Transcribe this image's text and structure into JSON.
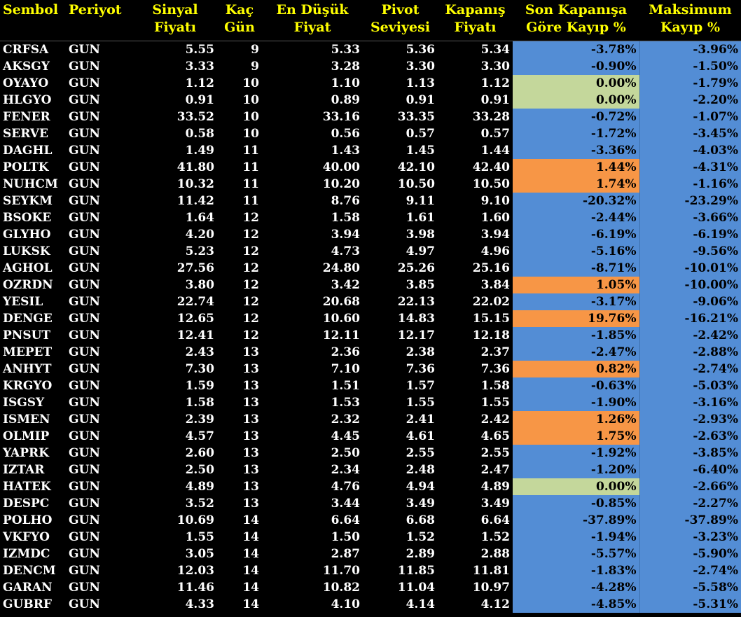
{
  "colors": {
    "header_text": "#ffff00",
    "body_text": "#ffffff",
    "background": "#000000",
    "loss_blue": "#538dd5",
    "zero_green": "#c4d79b",
    "gain_orange": "#f79646"
  },
  "headers": [
    {
      "line1": "Sembol",
      "line2": ""
    },
    {
      "line1": "Periyot",
      "line2": ""
    },
    {
      "line1": "Sinyal",
      "line2": "Fiyatı"
    },
    {
      "line1": "Kaç",
      "line2": "Gün"
    },
    {
      "line1": "En Düşük",
      "line2": "Fiyat"
    },
    {
      "line1": "Pivot",
      "line2": "Seviyesi"
    },
    {
      "line1": "Kapanış",
      "line2": "Fiyatı"
    },
    {
      "line1": "Son Kapanışa",
      "line2": "Göre Kayıp %"
    },
    {
      "line1": "Maksimum",
      "line2": "Kayıp %"
    }
  ],
  "rows": [
    {
      "sembol": "CRFSA",
      "periyot": "GUN",
      "sinyal": "5.55",
      "gun": "9",
      "dusuk": "5.33",
      "pivot": "5.36",
      "kapanis": "5.34",
      "kayip": "-3.78%",
      "maks": "-3.96%",
      "status": "loss"
    },
    {
      "sembol": "AKSGY",
      "periyot": "GUN",
      "sinyal": "3.33",
      "gun": "9",
      "dusuk": "3.28",
      "pivot": "3.30",
      "kapanis": "3.30",
      "kayip": "-0.90%",
      "maks": "-1.50%",
      "status": "loss"
    },
    {
      "sembol": "OYAYO",
      "periyot": "GUN",
      "sinyal": "1.12",
      "gun": "10",
      "dusuk": "1.10",
      "pivot": "1.13",
      "kapanis": "1.12",
      "kayip": "0.00%",
      "maks": "-1.79%",
      "status": "zero"
    },
    {
      "sembol": "HLGYO",
      "periyot": "GUN",
      "sinyal": "0.91",
      "gun": "10",
      "dusuk": "0.89",
      "pivot": "0.91",
      "kapanis": "0.91",
      "kayip": "0.00%",
      "maks": "-2.20%",
      "status": "zero"
    },
    {
      "sembol": "FENER",
      "periyot": "GUN",
      "sinyal": "33.52",
      "gun": "10",
      "dusuk": "33.16",
      "pivot": "33.35",
      "kapanis": "33.28",
      "kayip": "-0.72%",
      "maks": "-1.07%",
      "status": "loss"
    },
    {
      "sembol": "SERVE",
      "periyot": "GUN",
      "sinyal": "0.58",
      "gun": "10",
      "dusuk": "0.56",
      "pivot": "0.57",
      "kapanis": "0.57",
      "kayip": "-1.72%",
      "maks": "-3.45%",
      "status": "loss"
    },
    {
      "sembol": "DAGHL",
      "periyot": "GUN",
      "sinyal": "1.49",
      "gun": "11",
      "dusuk": "1.43",
      "pivot": "1.45",
      "kapanis": "1.44",
      "kayip": "-3.36%",
      "maks": "-4.03%",
      "status": "loss"
    },
    {
      "sembol": "POLTK",
      "periyot": "GUN",
      "sinyal": "41.80",
      "gun": "11",
      "dusuk": "40.00",
      "pivot": "42.10",
      "kapanis": "42.40",
      "kayip": "1.44%",
      "maks": "-4.31%",
      "status": "gain"
    },
    {
      "sembol": "NUHCM",
      "periyot": "GUN",
      "sinyal": "10.32",
      "gun": "11",
      "dusuk": "10.20",
      "pivot": "10.50",
      "kapanis": "10.50",
      "kayip": "1.74%",
      "maks": "-1.16%",
      "status": "gain"
    },
    {
      "sembol": "SEYKM",
      "periyot": "GUN",
      "sinyal": "11.42",
      "gun": "11",
      "dusuk": "8.76",
      "pivot": "9.11",
      "kapanis": "9.10",
      "kayip": "-20.32%",
      "maks": "-23.29%",
      "status": "loss"
    },
    {
      "sembol": "BSOKE",
      "periyot": "GUN",
      "sinyal": "1.64",
      "gun": "12",
      "dusuk": "1.58",
      "pivot": "1.61",
      "kapanis": "1.60",
      "kayip": "-2.44%",
      "maks": "-3.66%",
      "status": "loss"
    },
    {
      "sembol": "GLYHO",
      "periyot": "GUN",
      "sinyal": "4.20",
      "gun": "12",
      "dusuk": "3.94",
      "pivot": "3.98",
      "kapanis": "3.94",
      "kayip": "-6.19%",
      "maks": "-6.19%",
      "status": "loss"
    },
    {
      "sembol": "LUKSK",
      "periyot": "GUN",
      "sinyal": "5.23",
      "gun": "12",
      "dusuk": "4.73",
      "pivot": "4.97",
      "kapanis": "4.96",
      "kayip": "-5.16%",
      "maks": "-9.56%",
      "status": "loss"
    },
    {
      "sembol": "AGHOL",
      "periyot": "GUN",
      "sinyal": "27.56",
      "gun": "12",
      "dusuk": "24.80",
      "pivot": "25.26",
      "kapanis": "25.16",
      "kayip": "-8.71%",
      "maks": "-10.01%",
      "status": "loss"
    },
    {
      "sembol": "OZRDN",
      "periyot": "GUN",
      "sinyal": "3.80",
      "gun": "12",
      "dusuk": "3.42",
      "pivot": "3.85",
      "kapanis": "3.84",
      "kayip": "1.05%",
      "maks": "-10.00%",
      "status": "gain"
    },
    {
      "sembol": "YESIL",
      "periyot": "GUN",
      "sinyal": "22.74",
      "gun": "12",
      "dusuk": "20.68",
      "pivot": "22.13",
      "kapanis": "22.02",
      "kayip": "-3.17%",
      "maks": "-9.06%",
      "status": "loss"
    },
    {
      "sembol": "DENGE",
      "periyot": "GUN",
      "sinyal": "12.65",
      "gun": "12",
      "dusuk": "10.60",
      "pivot": "14.83",
      "kapanis": "15.15",
      "kayip": "19.76%",
      "maks": "-16.21%",
      "status": "gain"
    },
    {
      "sembol": "PNSUT",
      "periyot": "GUN",
      "sinyal": "12.41",
      "gun": "12",
      "dusuk": "12.11",
      "pivot": "12.17",
      "kapanis": "12.18",
      "kayip": "-1.85%",
      "maks": "-2.42%",
      "status": "loss"
    },
    {
      "sembol": "MEPET",
      "periyot": "GUN",
      "sinyal": "2.43",
      "gun": "13",
      "dusuk": "2.36",
      "pivot": "2.38",
      "kapanis": "2.37",
      "kayip": "-2.47%",
      "maks": "-2.88%",
      "status": "loss"
    },
    {
      "sembol": "ANHYT",
      "periyot": "GUN",
      "sinyal": "7.30",
      "gun": "13",
      "dusuk": "7.10",
      "pivot": "7.36",
      "kapanis": "7.36",
      "kayip": "0.82%",
      "maks": "-2.74%",
      "status": "gain"
    },
    {
      "sembol": "KRGYO",
      "periyot": "GUN",
      "sinyal": "1.59",
      "gun": "13",
      "dusuk": "1.51",
      "pivot": "1.57",
      "kapanis": "1.58",
      "kayip": "-0.63%",
      "maks": "-5.03%",
      "status": "loss"
    },
    {
      "sembol": "ISGSY",
      "periyot": "GUN",
      "sinyal": "1.58",
      "gun": "13",
      "dusuk": "1.53",
      "pivot": "1.55",
      "kapanis": "1.55",
      "kayip": "-1.90%",
      "maks": "-3.16%",
      "status": "loss"
    },
    {
      "sembol": "ISMEN",
      "periyot": "GUN",
      "sinyal": "2.39",
      "gun": "13",
      "dusuk": "2.32",
      "pivot": "2.41",
      "kapanis": "2.42",
      "kayip": "1.26%",
      "maks": "-2.93%",
      "status": "gain"
    },
    {
      "sembol": "OLMIP",
      "periyot": "GUN",
      "sinyal": "4.57",
      "gun": "13",
      "dusuk": "4.45",
      "pivot": "4.61",
      "kapanis": "4.65",
      "kayip": "1.75%",
      "maks": "-2.63%",
      "status": "gain"
    },
    {
      "sembol": "YAPRK",
      "periyot": "GUN",
      "sinyal": "2.60",
      "gun": "13",
      "dusuk": "2.50",
      "pivot": "2.55",
      "kapanis": "2.55",
      "kayip": "-1.92%",
      "maks": "-3.85%",
      "status": "loss"
    },
    {
      "sembol": "IZTAR",
      "periyot": "GUN",
      "sinyal": "2.50",
      "gun": "13",
      "dusuk": "2.34",
      "pivot": "2.48",
      "kapanis": "2.47",
      "kayip": "-1.20%",
      "maks": "-6.40%",
      "status": "loss"
    },
    {
      "sembol": "HATEK",
      "periyot": "GUN",
      "sinyal": "4.89",
      "gun": "13",
      "dusuk": "4.76",
      "pivot": "4.94",
      "kapanis": "4.89",
      "kayip": "0.00%",
      "maks": "-2.66%",
      "status": "zero"
    },
    {
      "sembol": "DESPC",
      "periyot": "GUN",
      "sinyal": "3.52",
      "gun": "13",
      "dusuk": "3.44",
      "pivot": "3.49",
      "kapanis": "3.49",
      "kayip": "-0.85%",
      "maks": "-2.27%",
      "status": "loss"
    },
    {
      "sembol": "POLHO",
      "periyot": "GUN",
      "sinyal": "10.69",
      "gun": "14",
      "dusuk": "6.64",
      "pivot": "6.68",
      "kapanis": "6.64",
      "kayip": "-37.89%",
      "maks": "-37.89%",
      "status": "loss"
    },
    {
      "sembol": "VKFYO",
      "periyot": "GUN",
      "sinyal": "1.55",
      "gun": "14",
      "dusuk": "1.50",
      "pivot": "1.52",
      "kapanis": "1.52",
      "kayip": "-1.94%",
      "maks": "-3.23%",
      "status": "loss"
    },
    {
      "sembol": "IZMDC",
      "periyot": "GUN",
      "sinyal": "3.05",
      "gun": "14",
      "dusuk": "2.87",
      "pivot": "2.89",
      "kapanis": "2.88",
      "kayip": "-5.57%",
      "maks": "-5.90%",
      "status": "loss"
    },
    {
      "sembol": "DENCM",
      "periyot": "GUN",
      "sinyal": "12.03",
      "gun": "14",
      "dusuk": "11.70",
      "pivot": "11.85",
      "kapanis": "11.81",
      "kayip": "-1.83%",
      "maks": "-2.74%",
      "status": "loss"
    },
    {
      "sembol": "GARAN",
      "periyot": "GUN",
      "sinyal": "11.46",
      "gun": "14",
      "dusuk": "10.82",
      "pivot": "11.04",
      "kapanis": "10.97",
      "kayip": "-4.28%",
      "maks": "-5.58%",
      "status": "loss"
    },
    {
      "sembol": "GUBRF",
      "periyot": "GUN",
      "sinyal": "4.33",
      "gun": "14",
      "dusuk": "4.10",
      "pivot": "4.14",
      "kapanis": "4.12",
      "kayip": "-4.85%",
      "maks": "-5.31%",
      "status": "loss"
    }
  ]
}
